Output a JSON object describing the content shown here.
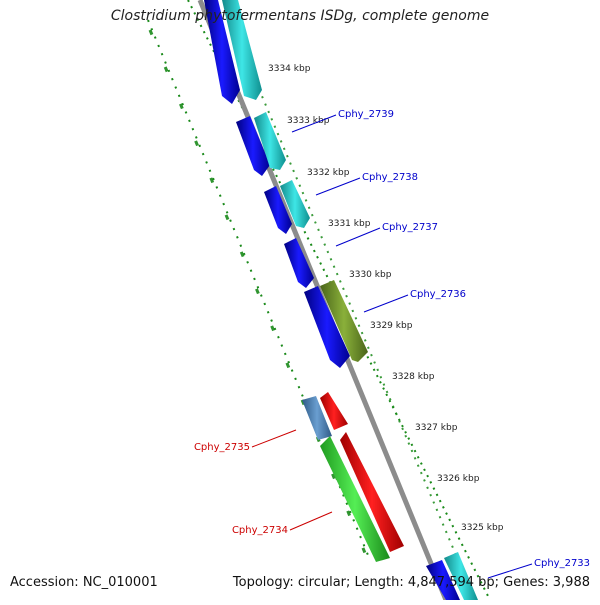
{
  "title": "Clostridium phytofermentans ISDg, complete genome",
  "footer": {
    "accession": "Accession: NC_010001",
    "summary": "Topology: circular; Length: 4,847,594 bp; Genes: 3,988"
  },
  "colors": {
    "forward_cds": "#0a0ae6",
    "forward_cds_alt": "#20d4d4",
    "reverse_cds": "#ee1111",
    "reverse_cds_alt": "#33cc33",
    "steelblue_cds": "#4a7fb0",
    "olive_cds": "#6b8e23",
    "backbone": "#8c8c8c",
    "ticks": "#1a8a1a",
    "forward_label": "#0000cc",
    "reverse_label": "#cc0000"
  },
  "scale_labels": [
    "3334 kbp",
    "3333 kbp",
    "3332 kbp",
    "3331 kbp",
    "3330 kbp",
    "3329 kbp",
    "3328 kbp",
    "3327 kbp",
    "3326 kbp",
    "3325 kbp"
  ],
  "gene_labels_forward": [
    "Cphy_2739",
    "Cphy_2738",
    "Cphy_2737",
    "Cphy_2736",
    "Cphy_2733"
  ],
  "gene_labels_reverse": [
    "Cphy_2735",
    "Cphy_2734"
  ]
}
